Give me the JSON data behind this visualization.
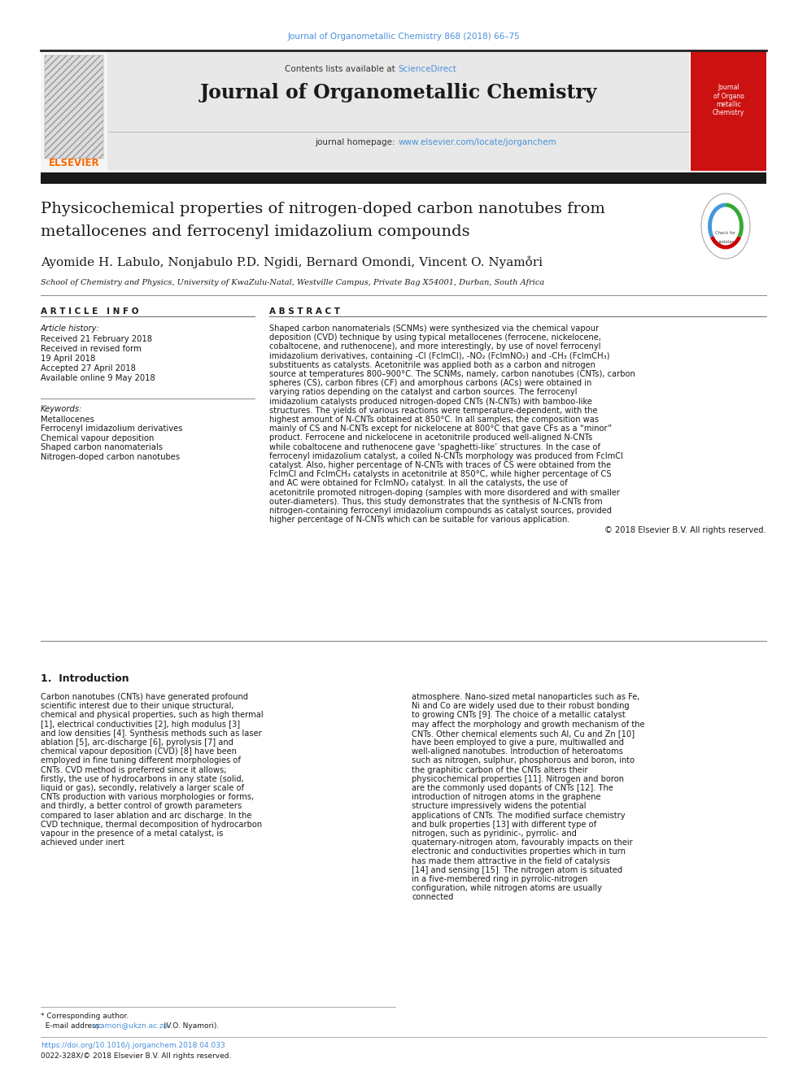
{
  "page_width": 9.92,
  "page_height": 13.23,
  "background_color": "#ffffff",
  "top_citation": "Journal of Organometallic Chemistry 868 (2018) 66–75",
  "top_citation_color": "#4a90d9",
  "journal_name": "Journal of Organometallic Chemistry",
  "contents_text": "Contents lists available at ",
  "sciencedirect_text": "ScienceDirect",
  "sciencedirect_color": "#4a90d9",
  "homepage_text": "journal homepage: ",
  "homepage_url": "www.elsevier.com/locate/jorganchem",
  "homepage_url_color": "#4a90d9",
  "article_title_line1": "Physicochemical properties of nitrogen-doped carbon nanotubes from",
  "article_title_line2": "metallocenes and ferrocenyl imidazolium compounds",
  "authors": "Ayomide H. Labulo, Nonjabulo P.D. Ngidi, Bernard Omondi, Vincent O. Nyamori",
  "affiliation": "School of Chemistry and Physics, University of KwaZulu-Natal, Westville Campus, Private Bag X54001, Durban, South Africa",
  "article_info_header": "A R T I C L E   I N F O",
  "abstract_header": "A B S T R A C T",
  "article_history_label": "Article history:",
  "history_items": [
    "Received 21 February 2018",
    "Received in revised form",
    "19 April 2018",
    "Accepted 27 April 2018",
    "Available online 9 May 2018"
  ],
  "keywords_label": "Keywords:",
  "keywords": [
    "Metallocenes",
    "Ferrocenyl imidazolium derivatives",
    "Chemical vapour deposition",
    "Shaped carbon nanomaterials",
    "Nitrogen-doped carbon nanotubes"
  ],
  "abstract_text": "Shaped carbon nanomaterials (SCNMs) were synthesized via the chemical vapour deposition (CVD) technique by using typical metallocenes (ferrocene, nickelocene, cobaltocene, and ruthenocene), and more interestingly, by use of novel ferrocenyl imidazolium derivatives, containing -Cl (FcImCl), -NO₂ (FcImNO₂) and -CH₃ (FcImCH₃) substituents as catalysts. Acetonitrile was applied both as a carbon and nitrogen source at temperatures 800–900°C. The SCNMs, namely, carbon nanotubes (CNTs), carbon spheres (CS), carbon fibres (CF) and amorphous carbons (ACs) were obtained in varying ratios depending on the catalyst and carbon sources. The ferrocenyl imidazolium catalysts produced nitrogen-doped CNTs (N-CNTs) with bamboo-like structures. The yields of various reactions were temperature-dependent, with the highest amount of N-CNTs obtained at 850°C. In all samples, the composition was mainly of CS and N-CNTs except for nickelocene at 800°C that gave CFs as a “minor” product. Ferrocene and nickelocene in acetonitrile produced well-aligned N-CNTs while cobaltocene and ruthenocene gave ‘spaghetti-like’ structures. In the case of ferrocenyl imidazolium catalyst, a coiled N-CNTs morphology was produced from FcImCl catalyst. Also, higher percentage of N-CNTs with traces of CS were obtained from the FcImCl and FcImCH₃ catalysts in acetonitrile at 850°C, while higher percentage of CS and AC were obtained for FcImNO₂ catalyst. In all the catalysts, the use of acetonitrile promoted nitrogen-doping (samples with more disordered and with smaller outer-diameters). Thus, this study demonstrates that the synthesis of N-CNTs from nitrogen-containing ferrocenyl imidazolium compounds as catalyst sources, provided higher percentage of N-CNTs which can be suitable for various application.",
  "copyright_text": "© 2018 Elsevier B.V. All rights reserved.",
  "intro_header": "1.  Introduction",
  "intro_col1": "Carbon nanotubes (CNTs) have generated profound scientific interest due to their unique structural, chemical and physical properties, such as high thermal [1], electrical conductivities [2], high modulus [3] and low densities [4]. Synthesis methods such as laser ablation [5], arc-discharge [6], pyrolysis [7] and chemical vapour deposition (CVD) [8] have been employed in fine tuning different morphologies of CNTs. CVD method is preferred since it allows; firstly, the use of hydrocarbons in any state (solid, liquid or gas), secondly, relatively a larger scale of CNTs production with various morphologies or forms, and thirdly, a better control of growth parameters compared to laser ablation and arc discharge. In the CVD technique, thermal decomposition of hydrocarbon vapour in the presence of a metal catalyst, is achieved under inert",
  "intro_col2": "atmosphere. Nano-sized metal nanoparticles such as Fe, Ni and Co are widely used due to their robust bonding to growing CNTs [9]. The choice of a metallic catalyst may affect the morphology and growth mechanism of the CNTs. Other chemical elements such Al, Cu and Zn [10] have been employed to give a pure, multiwalled and well-aligned nanotubes.  Introduction of heteroatoms such as nitrogen, sulphur, phosphorous and boron, into the graphitic carbon of the CNTs alters their physicochemical properties [11]. Nitrogen and boron are the commonly used dopants of CNTs [12]. The introduction of nitrogen atoms in the graphene structure impressively widens the potential applications of CNTs. The modified surface chemistry and bulk properties [13] with different type of nitrogen, such as pyridinic-, pyrrolic- and quaternary-nitrogen atom, favourably impacts on their electronic and conductivities properties which in turn has made them attractive in the field of catalysis [14] and sensing [15]. The nitrogen atom is situated in a five-membered ring in pyrrolic-nitrogen configuration, while nitrogen atoms are usually connected",
  "footer_url_color": "#4a90d9",
  "footer_doi": "https://doi.org/10.1016/j.jorganchem.2018.04.033",
  "footer_issn": "0022-328X/© 2018 Elsevier B.V. All rights reserved.",
  "header_bg_color": "#e8e8e8",
  "black_bar_color": "#1a1a1a",
  "text_color": "#000000"
}
